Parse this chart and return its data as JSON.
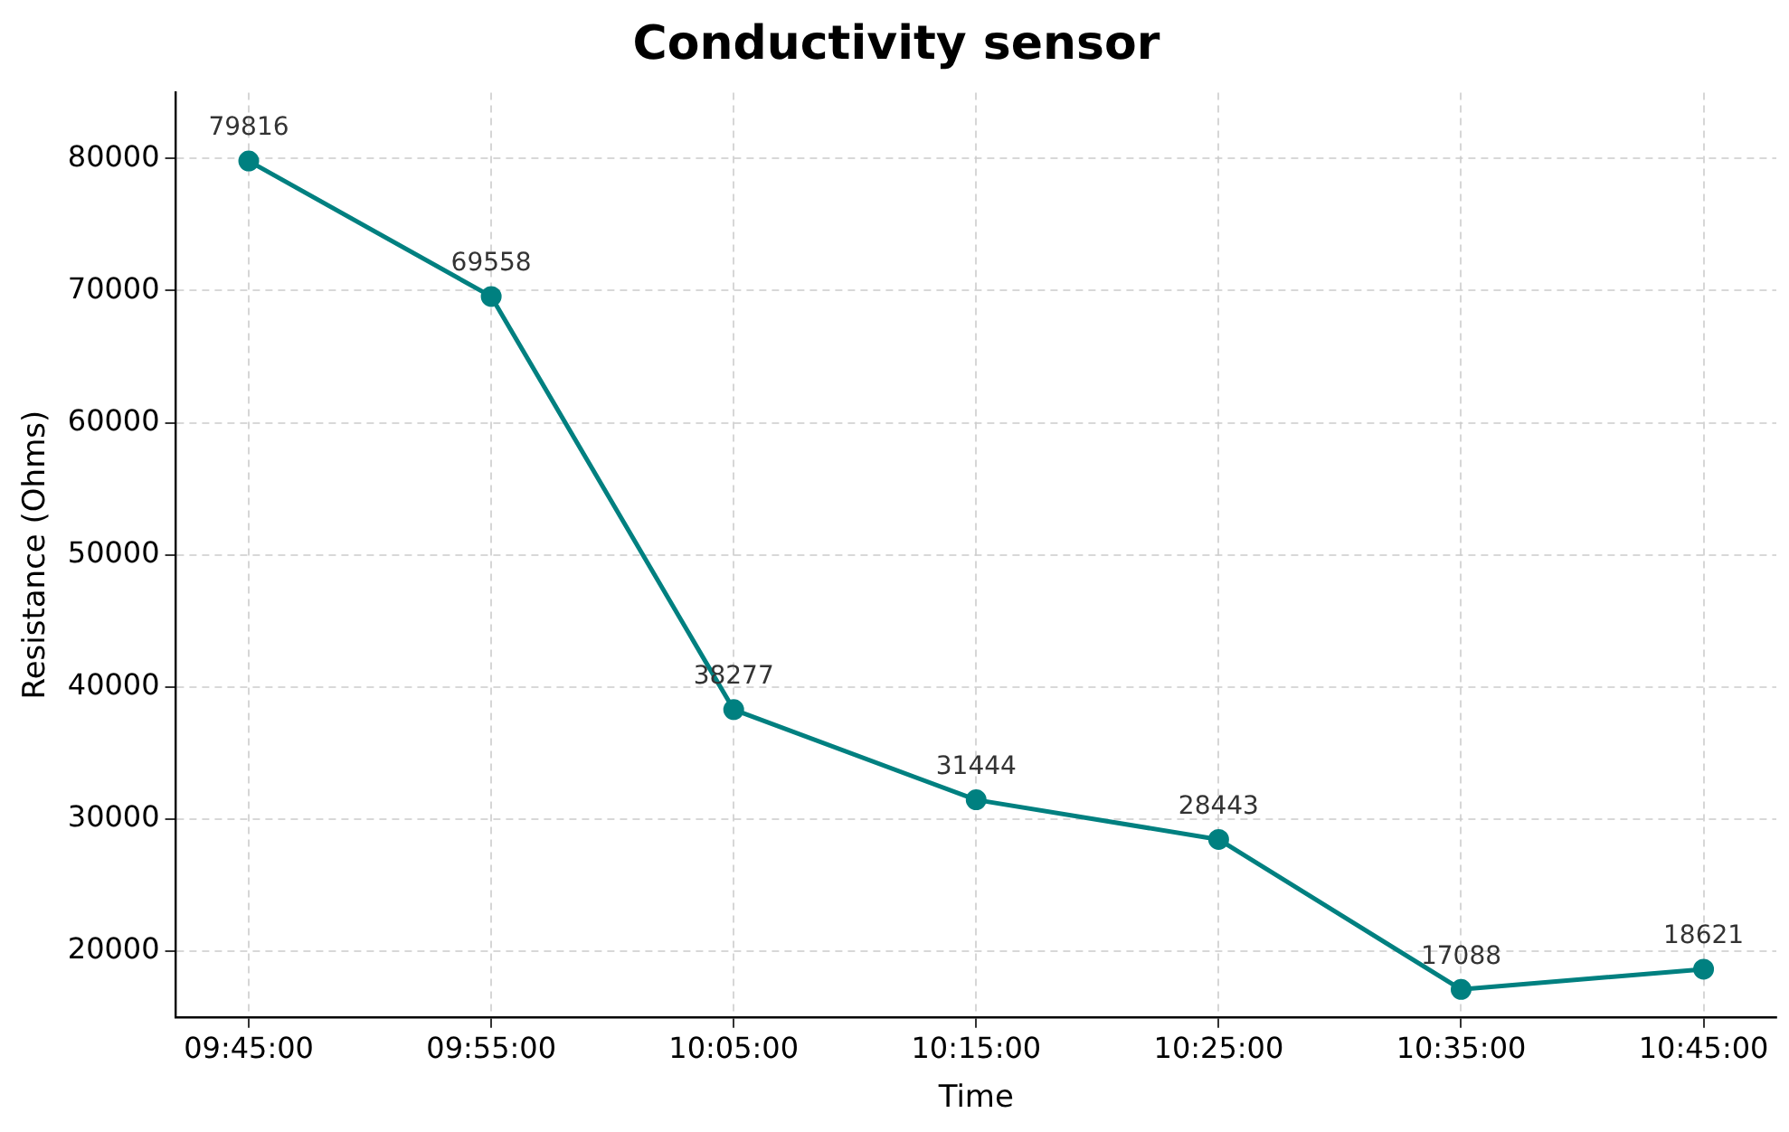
{
  "chart_data": {
    "type": "line",
    "title": "Conductivity sensor",
    "xlabel": "Time",
    "ylabel": "Resistance (Ohms)",
    "categories": [
      "09:45:00",
      "09:55:00",
      "10:05:00",
      "10:15:00",
      "10:25:00",
      "10:35:00",
      "10:45:00"
    ],
    "series": [
      {
        "color": "#008080",
        "values": [
          79816,
          69558,
          38277,
          31444,
          28443,
          17088,
          18621
        ]
      }
    ],
    "ylim": [
      15000,
      85000
    ],
    "yticks": [
      20000,
      30000,
      40000,
      50000,
      60000,
      70000,
      80000
    ],
    "grid": true,
    "legend": false,
    "marker": "circle",
    "line_style": "solid",
    "data_labels": true
  }
}
